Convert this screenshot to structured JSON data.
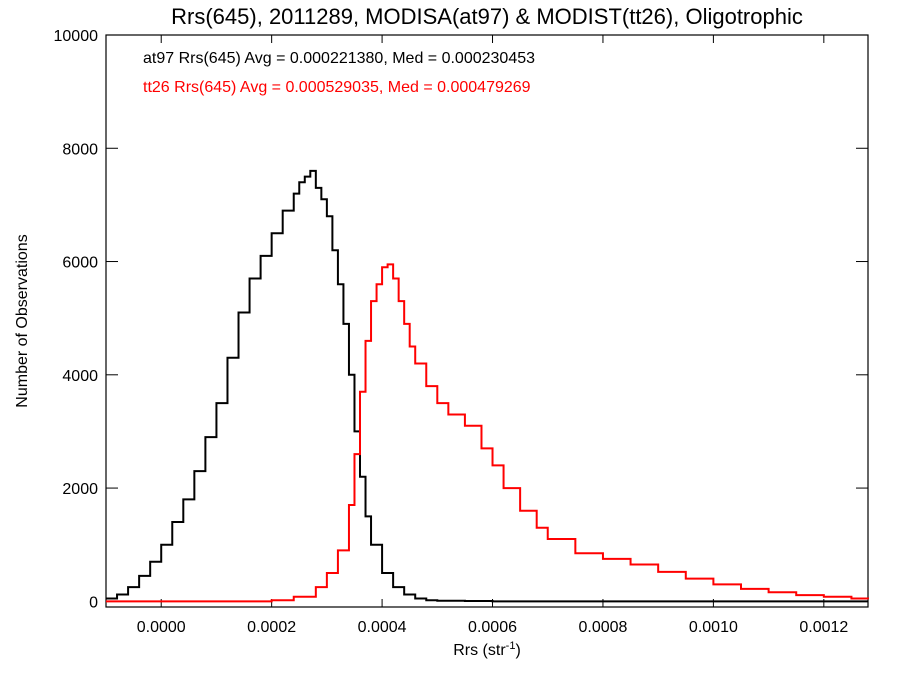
{
  "chart_data": {
    "type": "line",
    "title": "Rrs(645), 2011289, MODISA(at97) & MODIST(tt26), Oligotrophic",
    "xlabel": "Rrs (str",
    "xlabel_sup": "-1",
    "xlabel_end": ")",
    "ylabel": "Number of Observations",
    "xlim": [
      -0.0001,
      0.00128
    ],
    "ylim": [
      -100,
      10000
    ],
    "x_ticks": [
      "0.0000",
      "0.0002",
      "0.0004",
      "0.0006",
      "0.0008",
      "0.0010",
      "0.0012"
    ],
    "x_tick_values": [
      0.0,
      0.0002,
      0.0004,
      0.0006,
      0.0008,
      0.001,
      0.0012
    ],
    "y_ticks": [
      "0",
      "2000",
      "4000",
      "6000",
      "8000",
      "10000"
    ],
    "y_tick_values": [
      0,
      2000,
      4000,
      6000,
      8000,
      10000
    ],
    "grid": false,
    "legend_position": "top-left",
    "series": [
      {
        "annotation": "at97 Rrs(645) Avg = 0.000221380, Med = 0.000230453",
        "color": "#000000",
        "x": [
          -0.0001,
          -8e-05,
          -6e-05,
          -4e-05,
          -2e-05,
          0.0,
          2e-05,
          4e-05,
          6e-05,
          8e-05,
          0.0001,
          0.00012,
          0.00014,
          0.00016,
          0.00018,
          0.0002,
          0.00022,
          0.00024,
          0.00025,
          0.00026,
          0.00027,
          0.00028,
          0.00029,
          0.0003,
          0.00031,
          0.00032,
          0.00033,
          0.00034,
          0.00035,
          0.00036,
          0.00037,
          0.00038,
          0.0004,
          0.00042,
          0.00044,
          0.00046,
          0.00048,
          0.0005,
          0.00055,
          0.0006,
          0.0007,
          0.0008,
          0.001,
          0.00128
        ],
        "y": [
          50,
          120,
          250,
          450,
          700,
          1000,
          1400,
          1800,
          2300,
          2900,
          3500,
          4300,
          5100,
          5700,
          6100,
          6500,
          6900,
          7200,
          7400,
          7500,
          7600,
          7300,
          7100,
          6800,
          6200,
          5600,
          4900,
          4000,
          3000,
          2200,
          1500,
          1000,
          500,
          250,
          120,
          50,
          20,
          10,
          5,
          0,
          0,
          0,
          0,
          0
        ]
      },
      {
        "annotation": "tt26 Rrs(645) Avg = 0.000529035, Med = 0.000479269",
        "color": "#ff0000",
        "x": [
          -0.0001,
          0.0,
          0.0001,
          0.0002,
          0.00024,
          0.00028,
          0.0003,
          0.00032,
          0.00034,
          0.00035,
          0.00036,
          0.00037,
          0.00038,
          0.00039,
          0.0004,
          0.00041,
          0.00042,
          0.00043,
          0.00044,
          0.00045,
          0.00046,
          0.00048,
          0.0005,
          0.00052,
          0.00055,
          0.00058,
          0.0006,
          0.00062,
          0.00065,
          0.00068,
          0.0007,
          0.00075,
          0.0008,
          0.00085,
          0.0009,
          0.00095,
          0.001,
          0.00105,
          0.0011,
          0.00115,
          0.0012,
          0.00125,
          0.00128
        ],
        "y": [
          0,
          0,
          0,
          20,
          80,
          250,
          500,
          900,
          1700,
          2600,
          3700,
          4600,
          5300,
          5600,
          5900,
          5950,
          5700,
          5300,
          4900,
          4500,
          4200,
          3800,
          3500,
          3300,
          3100,
          2700,
          2400,
          2000,
          1600,
          1300,
          1100,
          850,
          750,
          650,
          520,
          400,
          300,
          220,
          160,
          110,
          80,
          50,
          40
        ]
      }
    ]
  }
}
